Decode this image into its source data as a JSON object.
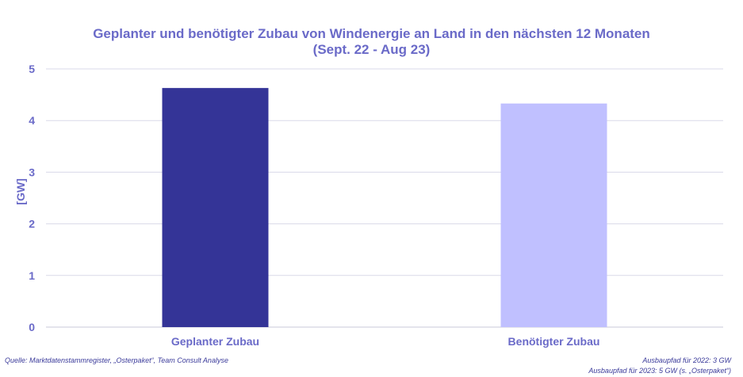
{
  "chart_data": {
    "type": "bar",
    "title_line1": "Geplanter und benötigter Zubau von Windenergie an Land in den nächsten 12 Monaten",
    "title_line2": "(Sept. 22 - Aug 23)",
    "ylabel": "[GW]",
    "xlabel": "",
    "categories": [
      "Geplanter Zubau",
      "Benötigter Zubau"
    ],
    "values": [
      4.63,
      4.33
    ],
    "colors": [
      "#343497",
      "#c0c0ff"
    ],
    "ylim": [
      0,
      5
    ],
    "yticks": [
      "0",
      "1",
      "2",
      "3",
      "4",
      "5"
    ],
    "grid": true,
    "legend": "none"
  },
  "footer": {
    "source": "Quelle: Marktdatenstammregister, „Osterpaket“, Team Consult Analyse",
    "note1": "Ausbaupfad für 2022: 3 GW",
    "note2": "Ausbaupfad für 2023: 5 GW (s. „Osterpaket“)"
  },
  "colors": {
    "axis_text": "#6a6ac8",
    "grid": "#d9d9e8"
  }
}
